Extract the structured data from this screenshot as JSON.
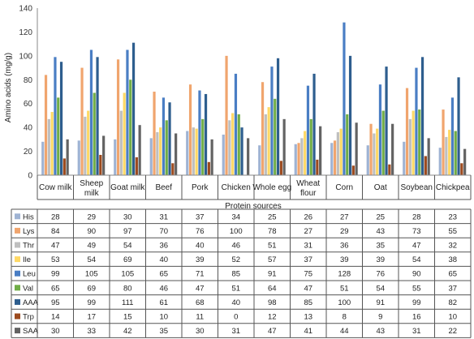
{
  "chart_data": {
    "type": "bar",
    "ylabel": "Amino acids (mg/g)",
    "xlabel": "Protein sources",
    "ylim": [
      0,
      140
    ],
    "yticks": [
      0,
      20,
      40,
      60,
      80,
      100,
      120,
      140
    ],
    "grid": false,
    "legend": "data-table",
    "categories": [
      "Cow milk",
      "Sheep milk",
      "Goat milk",
      "Beef",
      "Pork",
      "Chicken",
      "Whole egg",
      "Wheat flour",
      "Corn",
      "Oat",
      "Soybean",
      "Chickpea"
    ],
    "series": [
      {
        "name": "His",
        "color": "#9fb3d3",
        "values": [
          28,
          29,
          30,
          31,
          37,
          34,
          25,
          26,
          27,
          25,
          28,
          23
        ]
      },
      {
        "name": "Lys",
        "color": "#f0a56e",
        "values": [
          84,
          90,
          97,
          70,
          76,
          100,
          78,
          27,
          29,
          43,
          73,
          55
        ]
      },
      {
        "name": "Thr",
        "color": "#bfbfbf",
        "values": [
          47,
          49,
          54,
          36,
          40,
          46,
          51,
          31,
          36,
          35,
          47,
          32
        ]
      },
      {
        "name": "Ile",
        "color": "#ffd966",
        "values": [
          53,
          54,
          69,
          40,
          39,
          52,
          57,
          37,
          39,
          39,
          54,
          38
        ]
      },
      {
        "name": "Leu",
        "color": "#4a7ec4",
        "values": [
          99,
          105,
          105,
          65,
          71,
          85,
          91,
          75,
          128,
          76,
          90,
          65
        ]
      },
      {
        "name": "Val",
        "color": "#70ad47",
        "values": [
          65,
          69,
          80,
          46,
          47,
          51,
          64,
          47,
          51,
          54,
          55,
          37
        ]
      },
      {
        "name": "AAA",
        "color": "#2e5e8e",
        "values": [
          95,
          99,
          111,
          61,
          68,
          40,
          98,
          85,
          100,
          91,
          99,
          82
        ]
      },
      {
        "name": "Trp",
        "color": "#9c4a1e",
        "values": [
          14,
          17,
          15,
          10,
          11,
          0,
          12,
          13,
          8,
          9,
          16,
          10
        ]
      },
      {
        "name": "SAA",
        "color": "#636363",
        "values": [
          30,
          33,
          42,
          35,
          30,
          31,
          47,
          41,
          44,
          43,
          31,
          22
        ]
      }
    ]
  }
}
